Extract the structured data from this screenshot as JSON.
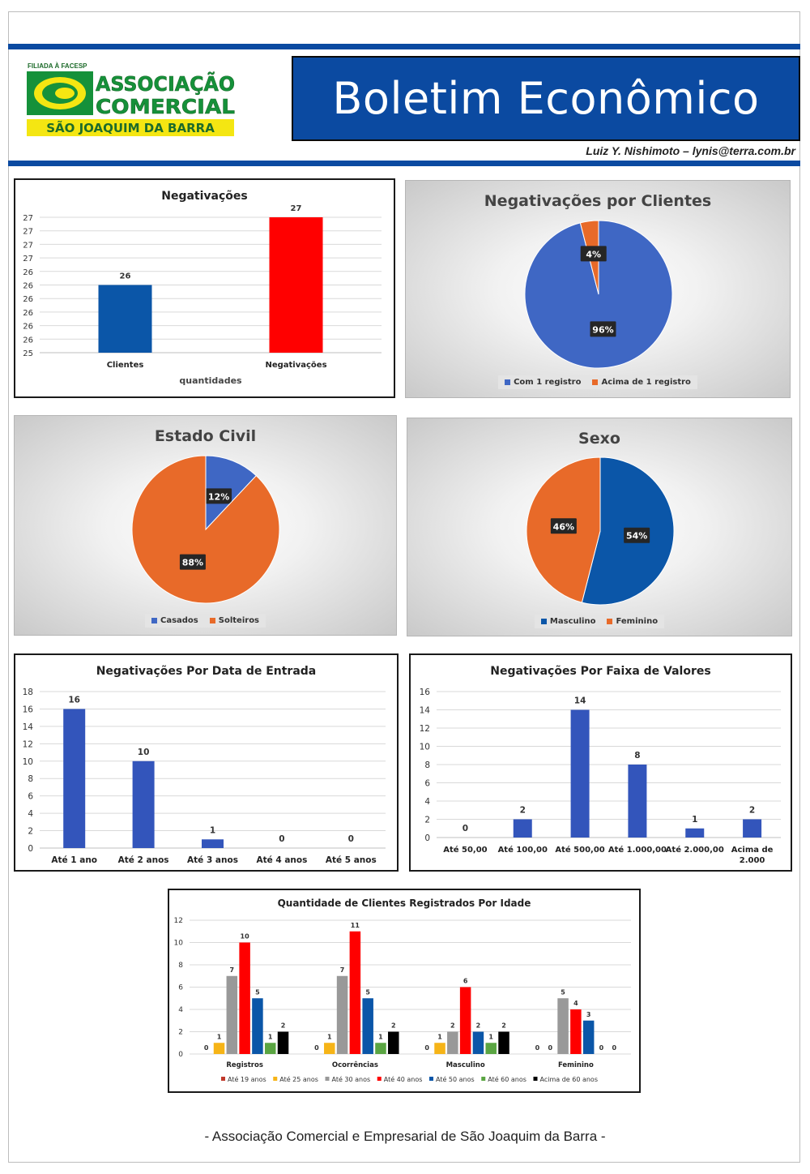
{
  "header": {
    "logo": {
      "affiliation": "FILIADA À FACESP",
      "name_line1": "ASSOCIAÇÃO",
      "name_line2": "COMERCIAL",
      "city": "SÃO JOAQUIM DA BARRA",
      "colors": {
        "green": "#15913a",
        "yellow": "#f4e612",
        "dark_green": "#1d6b2a"
      }
    },
    "title": "Boletim Econômico",
    "author": "Luiz Y. Nishimoto – lynis@terra.com.br",
    "brand_color": "#0b4aa1"
  },
  "footer": {
    "text": "- Associação Comercial e Empresarial de São Joaquim da Barra -"
  },
  "chart_data": [
    {
      "id": "negativacoes",
      "type": "bar",
      "title": "Negativações",
      "categories": [
        "Clientes",
        "Negativações"
      ],
      "values": [
        26,
        27
      ],
      "colors": [
        "#0b56a8",
        "#ff0000"
      ],
      "xlabel": "quantidades",
      "ylabel": "",
      "ylim": [
        25,
        27
      ],
      "yticks": [
        "25",
        "26",
        "26",
        "26",
        "26",
        "26",
        "26",
        "27",
        "27",
        "27",
        "27"
      ],
      "grid": true
    },
    {
      "id": "negativacoes-por-clientes",
      "type": "pie",
      "title": "Negativações por Clientes",
      "labels": [
        "Com 1 registro",
        "Acima de 1 registro"
      ],
      "values": [
        96,
        4
      ],
      "value_labels": [
        "96%",
        "4%"
      ],
      "colors": [
        "#3f67c4",
        "#e86a29"
      ],
      "legend": "bottom"
    },
    {
      "id": "estado-civil",
      "type": "pie",
      "title": "Estado Civil",
      "labels": [
        "Casados",
        "Solteiros"
      ],
      "values": [
        12,
        88
      ],
      "value_labels": [
        "12%",
        "88%"
      ],
      "colors": [
        "#3f67c4",
        "#e86a29"
      ],
      "legend": "bottom"
    },
    {
      "id": "sexo",
      "type": "pie",
      "title": "Sexo",
      "labels": [
        "Masculino",
        "Feminino"
      ],
      "values": [
        54,
        46
      ],
      "value_labels": [
        "54%",
        "46%"
      ],
      "colors": [
        "#0b56a8",
        "#e86a29"
      ],
      "legend": "bottom"
    },
    {
      "id": "data-de-entrada",
      "type": "bar",
      "title": "Negativações Por Data de Entrada",
      "categories": [
        "Até 1 ano",
        "Até 2 anos",
        "Até 3 anos",
        "Até 4 anos",
        "Até 5 anos"
      ],
      "values": [
        16,
        10,
        1,
        0,
        0
      ],
      "color": "#3355bb",
      "ylim": [
        0,
        18
      ],
      "ytick_step": 2,
      "grid": true
    },
    {
      "id": "faixa-de-valores",
      "type": "bar",
      "title": "Negativações Por Faixa de Valores",
      "categories": [
        "Até 50,00",
        "Até 100,00",
        "Até 500,00",
        "Até 1.000,00",
        "Até 2.000,00",
        "Acima de 2.000"
      ],
      "values": [
        0,
        2,
        14,
        8,
        1,
        2
      ],
      "color": "#3355bb",
      "ylim": [
        0,
        16
      ],
      "ytick_step": 2,
      "grid": true
    },
    {
      "id": "por-idade",
      "type": "bar",
      "title": "Quantidade de Clientes Registrados Por Idade",
      "categories": [
        "Registros",
        "Ocorrências",
        "Masculino",
        "Feminino"
      ],
      "series": [
        {
          "name": "Até 19 anos",
          "values": [
            0,
            0,
            0,
            0
          ],
          "color": "#c0392b"
        },
        {
          "name": "Até 25 anos",
          "values": [
            1,
            1,
            1,
            0
          ],
          "color": "#f6b417"
        },
        {
          "name": "Até 30 anos",
          "values": [
            7,
            7,
            2,
            5
          ],
          "color": "#999999"
        },
        {
          "name": "Até 40 anos",
          "values": [
            10,
            11,
            6,
            4
          ],
          "color": "#ff0000"
        },
        {
          "name": "Até 50 anos",
          "values": [
            5,
            5,
            2,
            3
          ],
          "color": "#0b56a8"
        },
        {
          "name": "Até 60 anos",
          "values": [
            1,
            1,
            1,
            0
          ],
          "color": "#5aa542"
        },
        {
          "name": "Acima de 60 anos",
          "values": [
            2,
            2,
            2,
            0
          ],
          "color": "#000000"
        }
      ],
      "ylim": [
        0,
        12
      ],
      "ytick_step": 2,
      "legend": "bottom",
      "grid": true
    }
  ]
}
